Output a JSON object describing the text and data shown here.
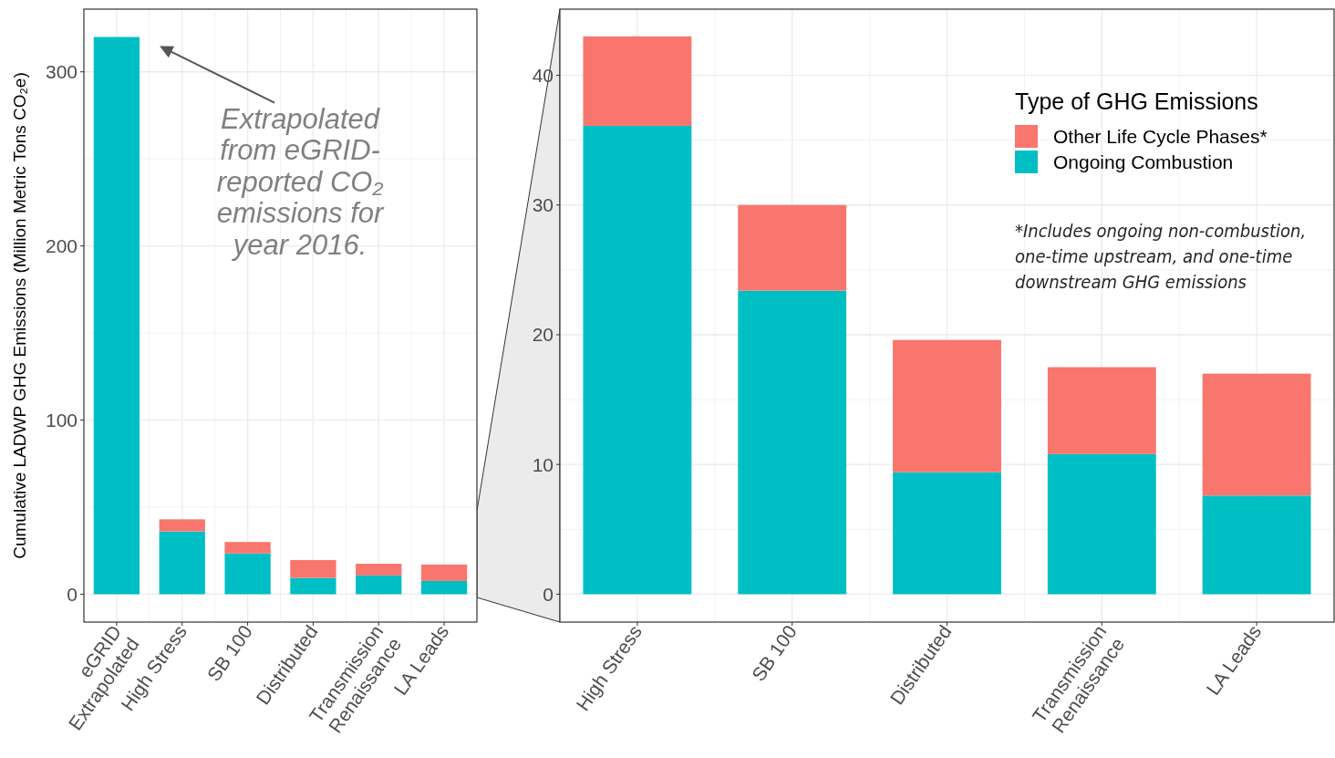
{
  "chart_data": [
    {
      "type": "bar",
      "stacked": true,
      "ylabel": "Cumulative LADWP GHG Emissions (Million Metric Tons CO₂e)",
      "categories": [
        "eGRID\nExtrapolated",
        "High Stress",
        "SB 100",
        "Distributed",
        "Transmission\nRenaissance",
        "LA Leads"
      ],
      "series": [
        {
          "color": "#00bfc4",
          "values": [
            320,
            36.1,
            23.4,
            9.4,
            10.8,
            7.6
          ]
        },
        {
          "color": "#f8766d",
          "values": [
            null,
            6.9,
            6.6,
            10.2,
            6.7,
            9.4
          ]
        }
      ],
      "ylim": [
        -16,
        336
      ],
      "yticks": [
        0,
        100,
        200,
        300
      ],
      "grid": true,
      "annotations": [
        "Extrapolated\nfrom eGRID-\nreported CO₂\nemissions for\nyear 2016."
      ]
    },
    {
      "type": "bar",
      "stacked": true,
      "legend_title": "Type of GHG Emissions",
      "categories": [
        "High Stress",
        "SB 100",
        "Distributed",
        "Transmission\nRenaissance",
        "LA Leads"
      ],
      "series": [
        {
          "name": "Ongoing Combustion",
          "color": "#00bfc4",
          "values": [
            36.1,
            23.4,
            9.4,
            10.8,
            7.6
          ]
        },
        {
          "name": "Other Life Cycle Phases*",
          "color": "#f8766d",
          "values": [
            6.9,
            6.6,
            10.2,
            6.7,
            9.4
          ]
        }
      ],
      "ylim": [
        -2.15,
        45.1
      ],
      "yticks": [
        0,
        10,
        20,
        30,
        40
      ],
      "grid": true,
      "legend": "top right",
      "annotations": [
        "*Includes ongoing non-combustion,\none-time upstream, and one-time\ndownstream GHG emissions"
      ]
    }
  ]
}
